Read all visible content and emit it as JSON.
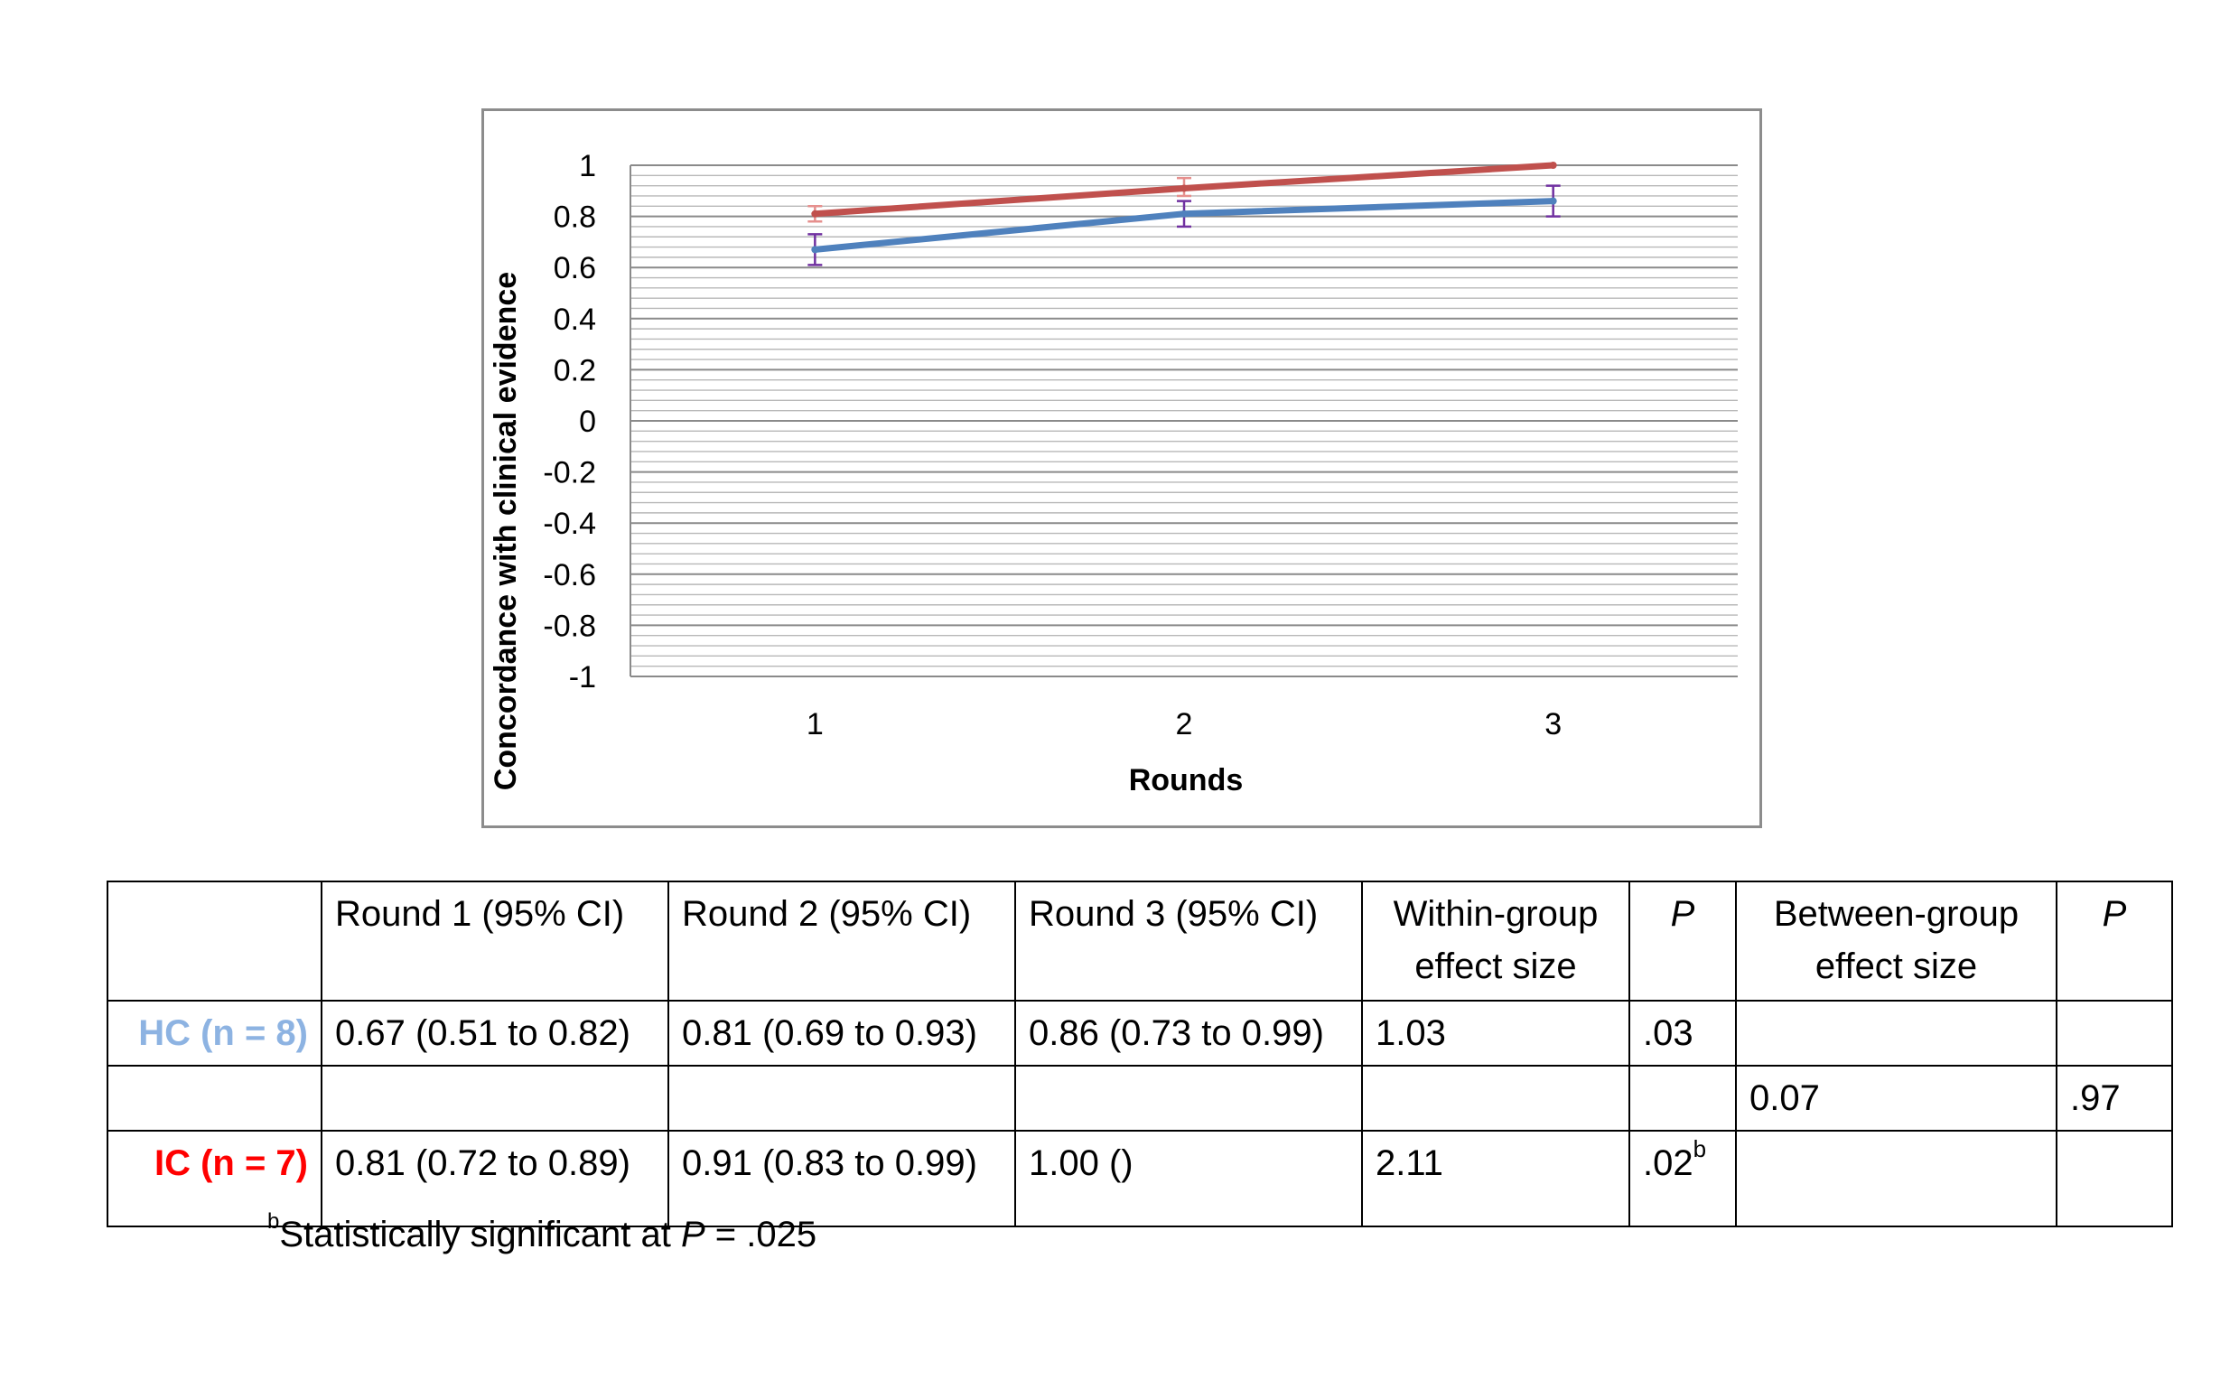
{
  "chart_data": {
    "type": "line",
    "title": "",
    "xlabel": "Rounds",
    "ylabel": "Concordance with clinical evidence",
    "categories": [
      "1",
      "2",
      "3"
    ],
    "ylim": [
      -1,
      1
    ],
    "yticks": [
      "1",
      "0.8",
      "0.6",
      "0.4",
      "0.2",
      "0",
      "-0.2",
      "-0.4",
      "-0.6",
      "-0.8",
      "-1"
    ],
    "ytick_values": [
      1,
      0.8,
      0.6,
      0.4,
      0.2,
      0,
      -0.2,
      -0.4,
      -0.6,
      -0.8,
      -1
    ],
    "grid": true,
    "legend": "none",
    "series": [
      {
        "group": "HC",
        "color": "#4f81bd",
        "error_color": "#7030a0",
        "values": [
          0.67,
          0.81,
          0.86
        ],
        "ci_low": [
          0.61,
          0.76,
          0.8
        ],
        "ci_high": [
          0.73,
          0.86,
          0.92
        ]
      },
      {
        "group": "IC",
        "color": "#c0504d",
        "error_color": "#e6908e",
        "values": [
          0.81,
          0.91,
          1.0
        ],
        "ci_low": [
          0.78,
          0.88,
          1.0
        ],
        "ci_high": [
          0.84,
          0.95,
          1.0
        ]
      }
    ]
  },
  "table": {
    "headers": {
      "round1": "Round 1 (95% CI)",
      "round2": "Round 2 (95% CI)",
      "round3": "Round 3 (95% CI)",
      "within_line1": "Within-group",
      "within_line2": "effect size",
      "p1": "P",
      "between_line1": "Between-group",
      "between_line2": "effect size",
      "p2": "P"
    },
    "hc": {
      "label": "HC (n = 8)",
      "color": "#8db3e2",
      "round1": "0.67 (0.51 to 0.82)",
      "round2": "0.81 (0.69 to 0.93)",
      "round3": "0.86 (0.73 to 0.99)",
      "within": "1.03",
      "p": ".03"
    },
    "between": {
      "effect": "0.07",
      "p": ".97"
    },
    "ic": {
      "label": "IC (n = 7)",
      "color": "#ff0000",
      "round1": "0.81 (0.72 to 0.89)",
      "round2": "0.91 (0.83 to 0.99)",
      "round3": "1.00 ()",
      "within": "2.11",
      "p": ".02",
      "p_sup": "b"
    }
  },
  "footnote": {
    "marker": "b",
    "text_before": "Statistically significant at ",
    "italic": "P",
    "text_after": " = .025"
  }
}
